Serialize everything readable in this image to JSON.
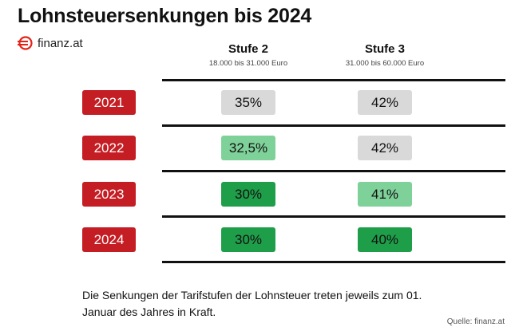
{
  "header": {
    "title": "Lohnsteuersenkungen bis 2024",
    "brand": "finanz.at"
  },
  "chart_data": {
    "type": "table",
    "title": "Lohnsteuersenkungen bis 2024",
    "columns": [
      {
        "name": "Stufe 2",
        "range": "18.000 bis 31.000 Euro"
      },
      {
        "name": "Stufe 3",
        "range": "31.000 bis 60.000 Euro"
      }
    ],
    "rows": [
      {
        "year": "2021",
        "values": [
          "35%",
          "42%"
        ]
      },
      {
        "year": "2022",
        "values": [
          "32,5%",
          "42%"
        ]
      },
      {
        "year": "2023",
        "values": [
          "30%",
          "41%"
        ]
      },
      {
        "year": "2024",
        "values": [
          "30%",
          "40%"
        ]
      }
    ]
  },
  "colors": {
    "year_badge": "#c41e24",
    "unchanged": "#d9d9d9",
    "reduced_light": "#7fd19a",
    "reduced_dark": "#1f9e4a",
    "brand_red": "#e2231a"
  },
  "footnote": "Die Senkungen der Tarifstufen der Lohnsteuer treten jeweils zum 01. Januar des Jahres in Kraft.",
  "source": "Quelle: finanz.at"
}
